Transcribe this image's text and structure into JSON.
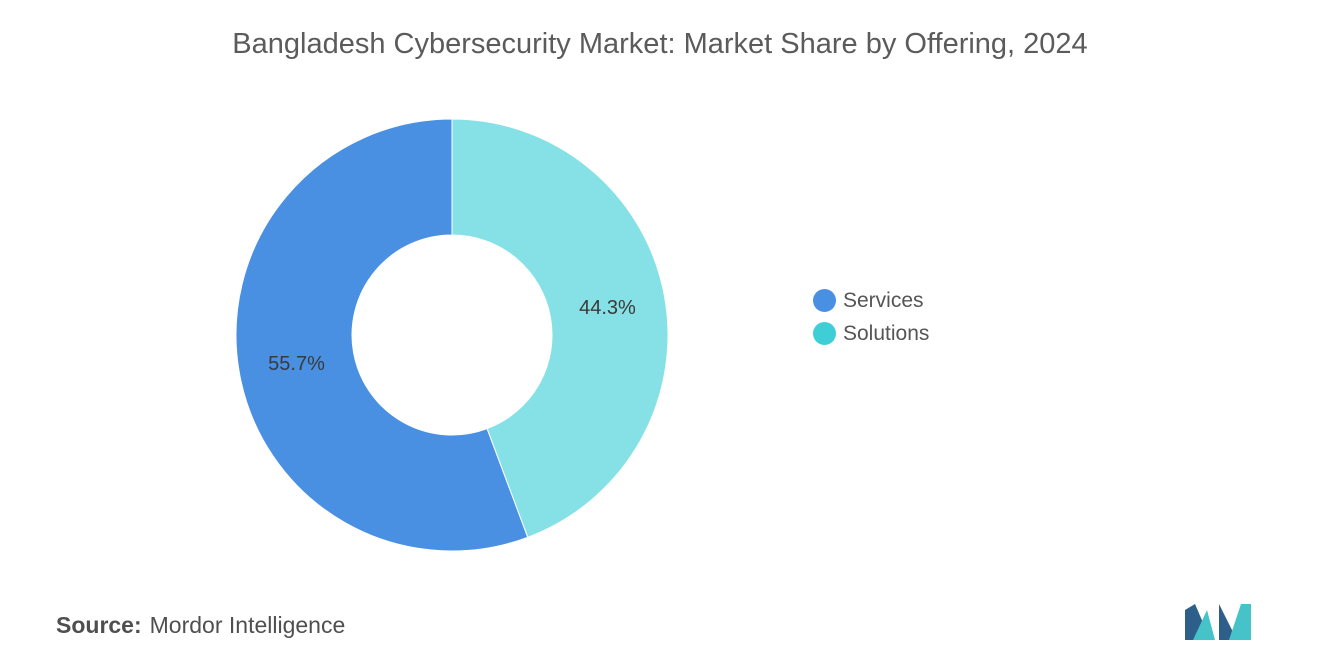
{
  "title": "Bangladesh Cybersecurity Market: Market Share by Offering, 2024",
  "source": {
    "label": "Source:",
    "value": "Mordor Intelligence"
  },
  "colors": {
    "services": "#4a90e2",
    "solutions": "#86e1e6",
    "solutions_legend": "#3ecfd6"
  },
  "chart_data": {
    "type": "pie",
    "donut": true,
    "title": "Bangladesh Cybersecurity Market: Market Share by Offering, 2024",
    "categories": [
      "Services",
      "Solutions"
    ],
    "values": [
      55.7,
      44.3
    ],
    "labels": [
      "55.7%",
      "44.3%"
    ],
    "legend": "right"
  },
  "legend": [
    {
      "label": "Services",
      "color": "#4a90e2"
    },
    {
      "label": "Solutions",
      "color": "#3ecfd6"
    }
  ]
}
